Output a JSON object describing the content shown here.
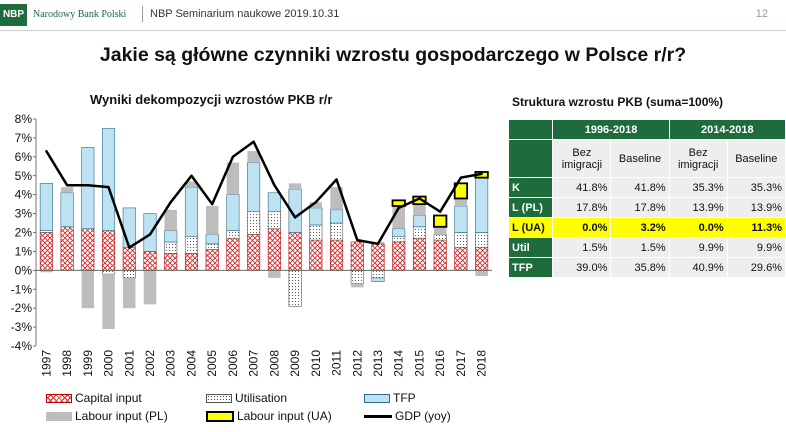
{
  "header": {
    "logo_text": "NBP",
    "bank_name": "Narodowy Bank Polski",
    "seminar": "NBP Seminarium naukowe 2019.10.31",
    "page_number": "12"
  },
  "main_title": "Jakie są główne czynniki wzrostu gospodarczego w Polsce r/r?",
  "colors": {
    "brand_green": "#1e6b3c",
    "capital": "#d22222",
    "tfp": "#bde3f3",
    "labour_pl": "#bdbdbd",
    "labour_ua": "#ffff00",
    "gdp": "#000000"
  },
  "chart_data": {
    "type": "bar",
    "stacked": true,
    "title": "Wyniki dekompozycji wzrostów PKB r/r",
    "xlabel": "",
    "ylabel": "",
    "ylim": [
      -4,
      8
    ],
    "y_ticks": [
      "-4%",
      "-3%",
      "-2%",
      "-1%",
      "0%",
      "1%",
      "2%",
      "3%",
      "4%",
      "5%",
      "6%",
      "7%",
      "8%"
    ],
    "categories": [
      "1997",
      "1998",
      "1999",
      "2000",
      "2001",
      "2002",
      "2003",
      "2004",
      "2005",
      "2006",
      "2007",
      "2008",
      "2009",
      "2010",
      "2011",
      "2012",
      "2013",
      "2014",
      "2015",
      "2016",
      "2017",
      "2018"
    ],
    "series": [
      {
        "name": "Capital input",
        "values": [
          2.0,
          2.3,
          2.2,
          2.1,
          1.2,
          1.0,
          0.9,
          0.9,
          1.1,
          1.7,
          1.9,
          2.2,
          2.0,
          1.6,
          1.6,
          1.5,
          1.4,
          1.5,
          1.7,
          1.6,
          1.2,
          1.2
        ]
      },
      {
        "name": "Utilisation",
        "values": [
          0.1,
          0.0,
          0.0,
          -0.2,
          -0.4,
          0.0,
          0.6,
          0.9,
          0.3,
          0.4,
          1.2,
          0.9,
          -1.9,
          0.8,
          0.9,
          -0.7,
          -0.4,
          0.3,
          0.6,
          0.3,
          0.8,
          0.8
        ]
      },
      {
        "name": "TFP",
        "values": [
          2.5,
          1.8,
          4.3,
          5.4,
          2.1,
          2.0,
          0.6,
          2.6,
          0.5,
          1.9,
          2.6,
          1.0,
          2.3,
          0.9,
          0.7,
          0.0,
          -0.2,
          0.4,
          0.6,
          0.0,
          1.4,
          2.9
        ]
      },
      {
        "name": "Labour input (PL)",
        "values": [
          -0.1,
          0.3,
          -2.0,
          -2.9,
          -1.6,
          -1.8,
          1.1,
          0.3,
          1.5,
          1.7,
          0.6,
          -0.4,
          0.3,
          0.3,
          1.2,
          -0.2,
          0.1,
          1.2,
          0.6,
          0.4,
          0.4,
          -0.3
        ]
      },
      {
        "name": "Labour input (UA)",
        "values": [
          0,
          0,
          0,
          0,
          0,
          0,
          0,
          0,
          0,
          0,
          0,
          0,
          0,
          0,
          0,
          0,
          0,
          0.3,
          0.4,
          0.6,
          0.8,
          0.3
        ]
      },
      {
        "name": "GDP (yoy)",
        "type": "line",
        "values": [
          6.3,
          4.5,
          4.5,
          4.4,
          1.2,
          1.9,
          3.6,
          5.0,
          3.5,
          6.0,
          6.8,
          4.5,
          2.8,
          3.6,
          4.8,
          1.6,
          1.4,
          3.3,
          3.8,
          3.1,
          4.9,
          5.1
        ]
      }
    ],
    "legend": [
      "Capital input",
      "Utilisation",
      "TFP",
      "Labour input (PL)",
      "Labour input (UA)",
      "GDP (yoy)"
    ],
    "legend_position": "bottom"
  },
  "table": {
    "title": "Struktura wzrostu PKB (suma=100%)",
    "period_headers": [
      "1996-2018",
      "2014-2018"
    ],
    "sub_headers": [
      "Bez imigracji",
      "Baseline",
      "Bez imigracji",
      "Baseline"
    ],
    "rows": [
      {
        "label": "K",
        "values": [
          "41.8%",
          "41.8%",
          "35.3%",
          "35.3%"
        ]
      },
      {
        "label": "L (PL)",
        "values": [
          "17.8%",
          "17.8%",
          "13.9%",
          "13.9%"
        ]
      },
      {
        "label": "L (UA)",
        "values": [
          "0.0%",
          "3.2%",
          "0.0%",
          "11.3%"
        ]
      },
      {
        "label": "Util",
        "values": [
          "1.5%",
          "1.5%",
          "9.9%",
          "9.9%"
        ]
      },
      {
        "label": "TFP",
        "values": [
          "39.0%",
          "35.8%",
          "40.9%",
          "29.6%"
        ]
      }
    ]
  }
}
